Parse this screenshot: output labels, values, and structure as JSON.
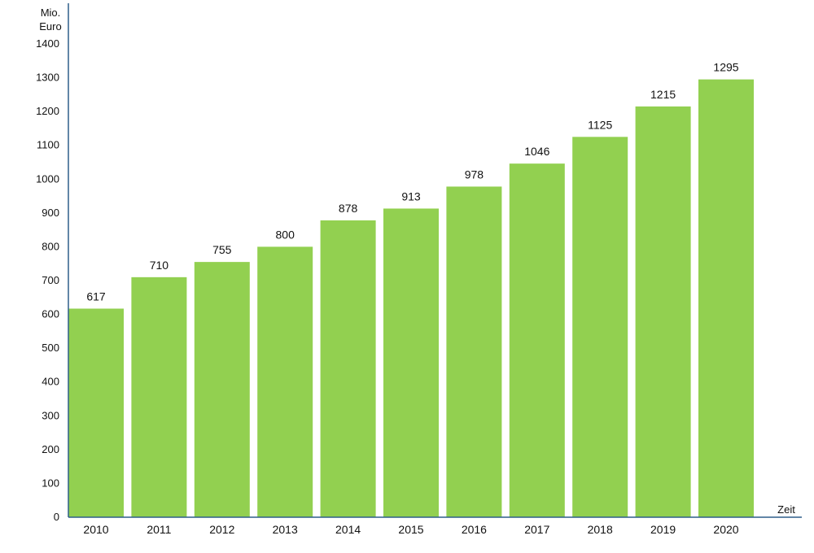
{
  "chart_data": {
    "type": "bar",
    "title": "",
    "ylabel_line1": "Mio.",
    "ylabel_line2": "Euro",
    "xlabel": "Zeit",
    "categories": [
      "2010",
      "2011",
      "2012",
      "2013",
      "2014",
      "2015",
      "2016",
      "2017",
      "2018",
      "2019",
      "2020"
    ],
    "values": [
      617,
      710,
      755,
      800,
      878,
      913,
      978,
      1046,
      1125,
      1215,
      1295
    ],
    "data_labels": [
      "617",
      "710",
      "755",
      "800",
      "878",
      "913",
      "978",
      "1046",
      "1125",
      "1215",
      "1295"
    ],
    "yticks": [
      0,
      100,
      200,
      300,
      400,
      500,
      600,
      700,
      800,
      900,
      1000,
      1100,
      1200,
      1300,
      1400
    ],
    "ytick_labels": [
      "0",
      "100",
      "200",
      "300",
      "400",
      "500",
      "600",
      "700",
      "800",
      "900",
      "1000",
      "1100",
      "1200",
      "1300",
      "1400"
    ],
    "ylim": [
      0,
      1400
    ],
    "grid": false,
    "legend": "none",
    "bar_color": "#92d050",
    "axis_color": "#2e5f8a"
  }
}
